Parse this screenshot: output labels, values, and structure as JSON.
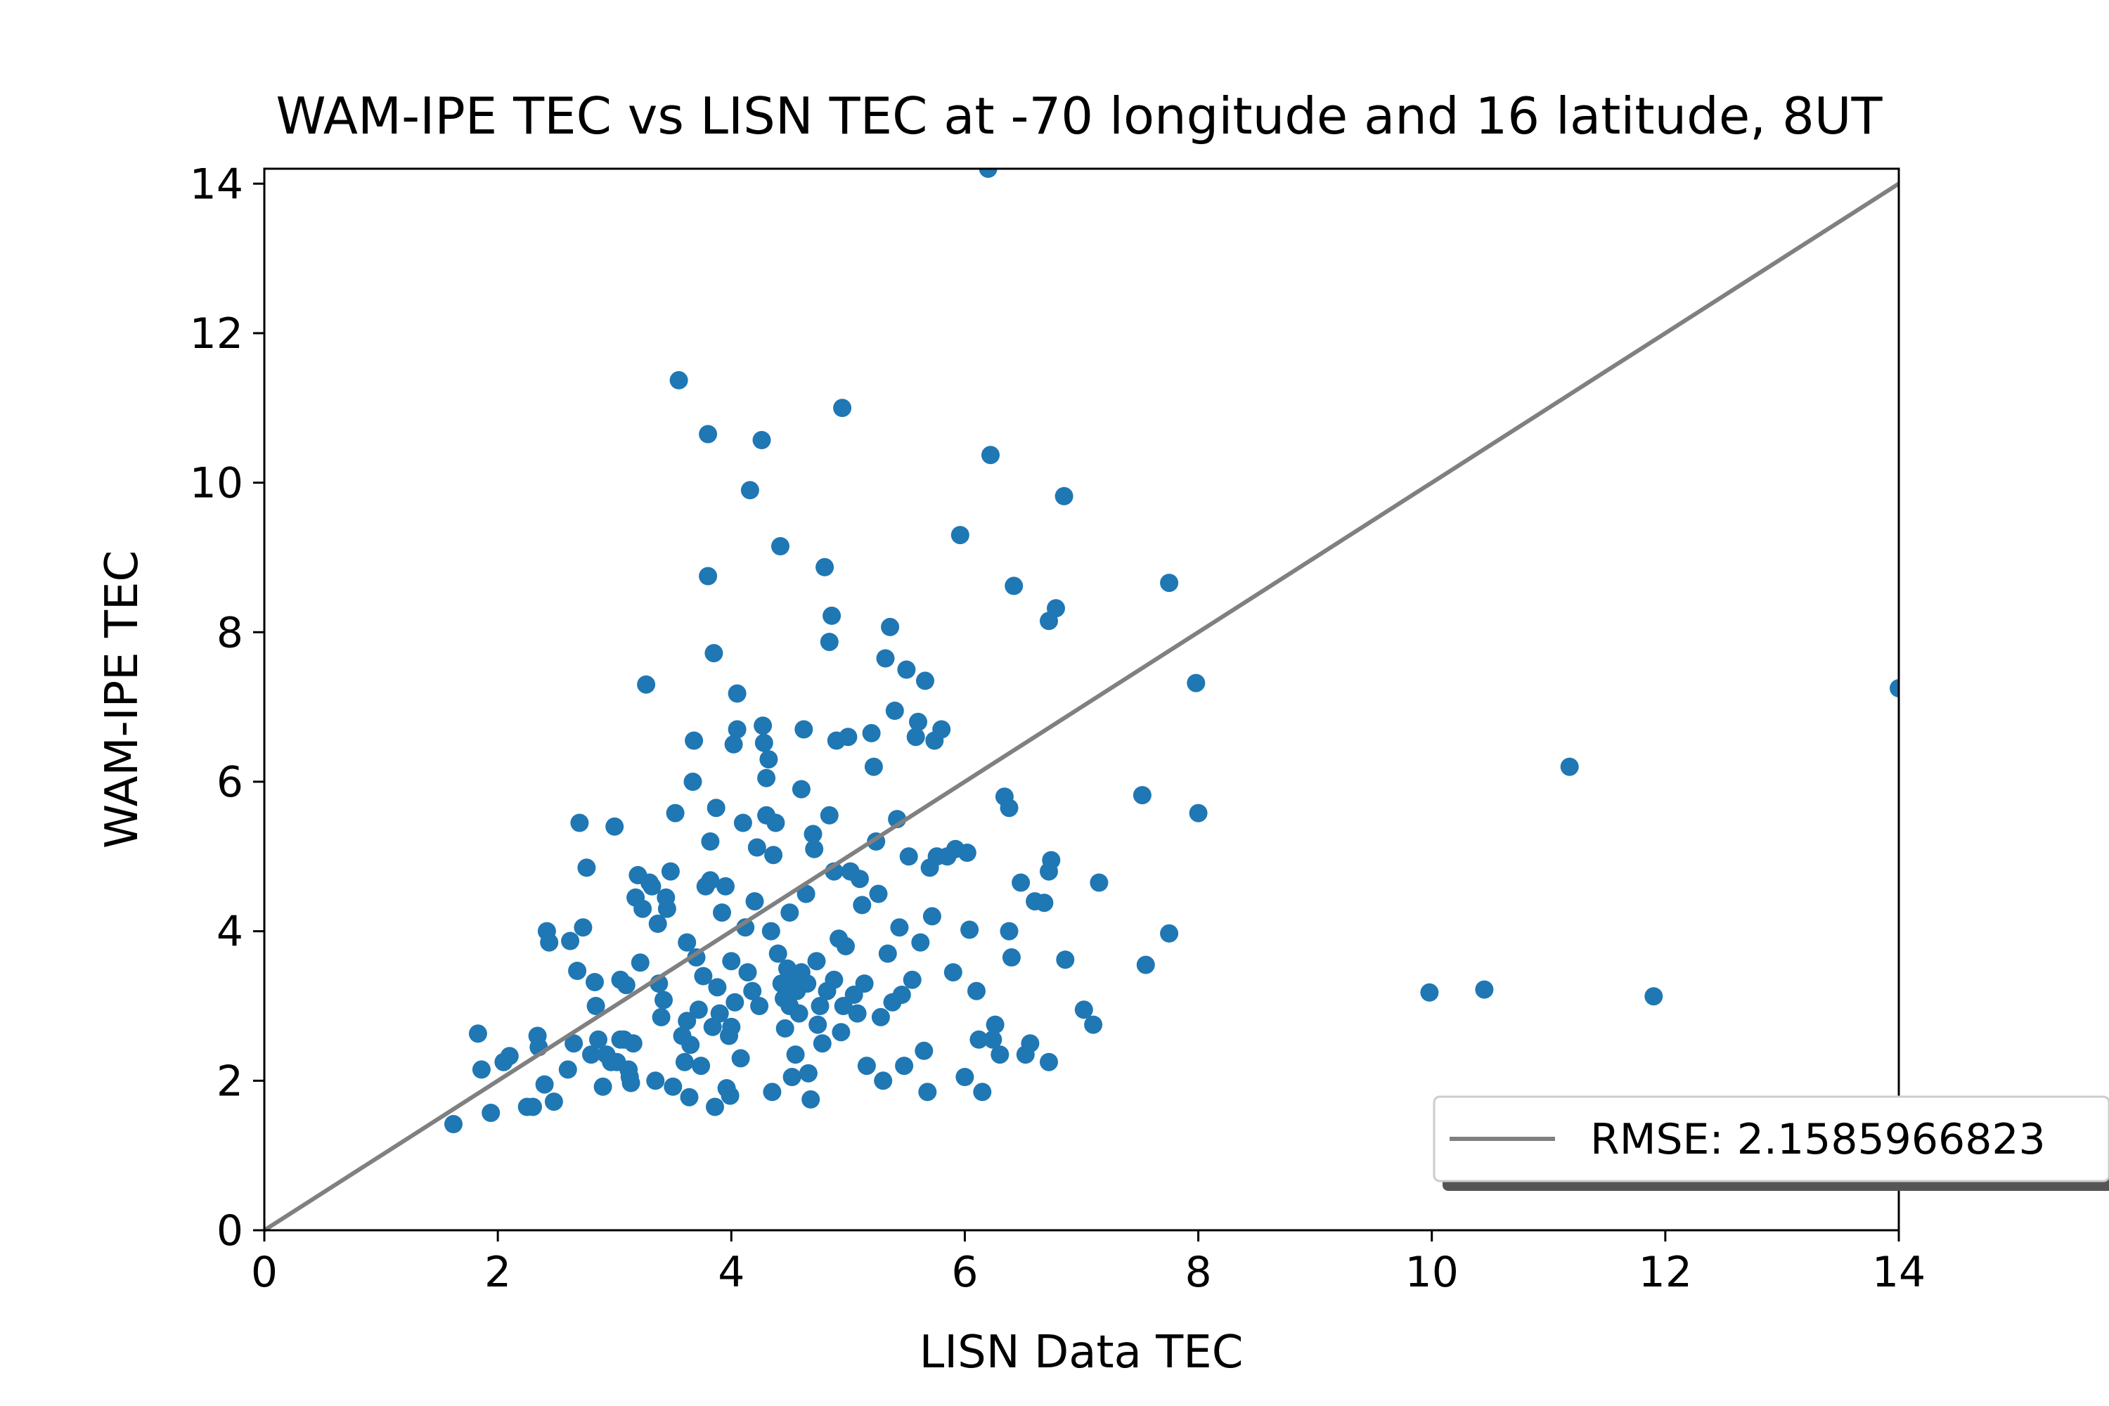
{
  "chart_data": {
    "type": "scatter",
    "title": "WAM-IPE TEC vs LISN TEC at -70 longitude and 16 latitude, 8UT",
    "xlabel": "LISN Data TEC",
    "ylabel": "WAM-IPE TEC",
    "xlim": [
      0,
      14
    ],
    "ylim": [
      0,
      14.2
    ],
    "xticks": [
      "0",
      "2",
      "4",
      "6",
      "8",
      "10",
      "12",
      "14"
    ],
    "yticks": [
      "0",
      "2",
      "4",
      "6",
      "8",
      "10",
      "12",
      "14"
    ],
    "grid": false,
    "legend_position": "lower-right",
    "legend": [
      {
        "label": "RMSE: 2.1585966823",
        "marker": "line",
        "color": "#808080"
      }
    ],
    "colors": {
      "points": "#1f77b4",
      "reference_line": "#808080"
    },
    "reference_line": {
      "x": [
        0,
        14
      ],
      "y": [
        0,
        14
      ]
    },
    "series": [
      {
        "color": "#1f77b4",
        "points": [
          [
            1.62,
            1.42
          ],
          [
            1.83,
            2.63
          ],
          [
            1.86,
            2.15
          ],
          [
            1.94,
            1.57
          ],
          [
            2.05,
            2.25
          ],
          [
            2.1,
            2.33
          ],
          [
            2.25,
            1.65
          ],
          [
            2.3,
            1.65
          ],
          [
            2.34,
            2.6
          ],
          [
            2.35,
            2.45
          ],
          [
            2.4,
            1.95
          ],
          [
            2.42,
            4.0
          ],
          [
            2.44,
            3.85
          ],
          [
            2.48,
            1.72
          ],
          [
            2.6,
            2.15
          ],
          [
            2.62,
            3.87
          ],
          [
            2.65,
            2.5
          ],
          [
            2.68,
            3.47
          ],
          [
            2.7,
            5.45
          ],
          [
            2.73,
            4.05
          ],
          [
            2.76,
            4.85
          ],
          [
            2.8,
            2.35
          ],
          [
            2.83,
            3.32
          ],
          [
            2.84,
            3.0
          ],
          [
            2.86,
            2.55
          ],
          [
            2.9,
            1.92
          ],
          [
            2.93,
            2.35
          ],
          [
            2.97,
            2.25
          ],
          [
            3.0,
            5.4
          ],
          [
            3.02,
            2.25
          ],
          [
            3.05,
            3.35
          ],
          [
            3.05,
            2.55
          ],
          [
            3.08,
            2.55
          ],
          [
            3.1,
            3.28
          ],
          [
            3.12,
            2.15
          ],
          [
            3.13,
            2.05
          ],
          [
            3.14,
            1.97
          ],
          [
            3.16,
            2.5
          ],
          [
            3.18,
            4.45
          ],
          [
            3.2,
            4.75
          ],
          [
            3.22,
            3.58
          ],
          [
            3.24,
            4.3
          ],
          [
            3.27,
            7.3
          ],
          [
            3.3,
            4.65
          ],
          [
            3.32,
            4.6
          ],
          [
            3.35,
            2.0
          ],
          [
            3.37,
            4.1
          ],
          [
            3.38,
            3.3
          ],
          [
            3.4,
            2.85
          ],
          [
            3.42,
            3.08
          ],
          [
            3.44,
            4.45
          ],
          [
            3.45,
            4.3
          ],
          [
            3.48,
            4.8
          ],
          [
            3.5,
            1.92
          ],
          [
            3.52,
            5.58
          ],
          [
            3.55,
            11.37
          ],
          [
            3.58,
            2.6
          ],
          [
            3.6,
            2.25
          ],
          [
            3.62,
            3.85
          ],
          [
            3.62,
            2.8
          ],
          [
            3.64,
            1.78
          ],
          [
            3.65,
            2.48
          ],
          [
            3.67,
            6.0
          ],
          [
            3.68,
            6.55
          ],
          [
            3.7,
            3.65
          ],
          [
            3.72,
            2.95
          ],
          [
            3.74,
            2.2
          ],
          [
            3.76,
            3.4
          ],
          [
            3.78,
            4.6
          ],
          [
            3.8,
            10.65
          ],
          [
            3.8,
            8.75
          ],
          [
            3.82,
            5.2
          ],
          [
            3.82,
            4.68
          ],
          [
            3.84,
            2.72
          ],
          [
            3.85,
            7.72
          ],
          [
            3.86,
            1.65
          ],
          [
            3.87,
            5.65
          ],
          [
            3.88,
            3.25
          ],
          [
            3.9,
            2.9
          ],
          [
            3.92,
            4.25
          ],
          [
            3.95,
            4.6
          ],
          [
            3.96,
            1.9
          ],
          [
            3.98,
            2.6
          ],
          [
            3.99,
            1.8
          ],
          [
            4.0,
            3.6
          ],
          [
            4.0,
            2.72
          ],
          [
            4.02,
            6.5
          ],
          [
            4.03,
            3.05
          ],
          [
            4.05,
            7.18
          ],
          [
            4.05,
            6.7
          ],
          [
            4.08,
            2.3
          ],
          [
            4.1,
            5.45
          ],
          [
            4.12,
            4.05
          ],
          [
            4.14,
            3.45
          ],
          [
            4.16,
            9.9
          ],
          [
            4.18,
            3.2
          ],
          [
            4.2,
            4.4
          ],
          [
            4.22,
            5.12
          ],
          [
            4.24,
            3.0
          ],
          [
            4.26,
            10.57
          ],
          [
            4.27,
            6.75
          ],
          [
            4.28,
            6.52
          ],
          [
            4.3,
            6.05
          ],
          [
            4.3,
            5.55
          ],
          [
            4.32,
            6.3
          ],
          [
            4.34,
            4.0
          ],
          [
            4.35,
            1.85
          ],
          [
            4.36,
            5.02
          ],
          [
            4.38,
            5.45
          ],
          [
            4.4,
            3.7
          ],
          [
            4.42,
            9.15
          ],
          [
            4.43,
            3.3
          ],
          [
            4.45,
            3.1
          ],
          [
            4.46,
            2.7
          ],
          [
            4.48,
            3.5
          ],
          [
            4.5,
            4.25
          ],
          [
            4.5,
            3.0
          ],
          [
            4.52,
            2.05
          ],
          [
            4.54,
            3.4
          ],
          [
            4.55,
            2.35
          ],
          [
            4.56,
            3.2
          ],
          [
            4.58,
            2.9
          ],
          [
            4.6,
            5.9
          ],
          [
            4.6,
            3.45
          ],
          [
            4.62,
            6.7
          ],
          [
            4.64,
            4.5
          ],
          [
            4.65,
            3.3
          ],
          [
            4.66,
            2.1
          ],
          [
            4.68,
            1.75
          ],
          [
            4.7,
            5.3
          ],
          [
            4.71,
            5.1
          ],
          [
            4.73,
            3.6
          ],
          [
            4.74,
            2.75
          ],
          [
            4.76,
            3.0
          ],
          [
            4.78,
            2.5
          ],
          [
            4.8,
            8.87
          ],
          [
            4.82,
            3.2
          ],
          [
            4.84,
            7.87
          ],
          [
            4.84,
            5.55
          ],
          [
            4.86,
            8.22
          ],
          [
            4.88,
            4.8
          ],
          [
            4.88,
            3.35
          ],
          [
            4.9,
            6.55
          ],
          [
            4.92,
            3.9
          ],
          [
            4.94,
            2.65
          ],
          [
            4.95,
            11.0
          ],
          [
            4.96,
            3.0
          ],
          [
            4.98,
            3.8
          ],
          [
            5.0,
            6.6
          ],
          [
            5.02,
            4.8
          ],
          [
            5.05,
            3.15
          ],
          [
            5.08,
            2.9
          ],
          [
            5.1,
            4.7
          ],
          [
            5.12,
            4.35
          ],
          [
            5.14,
            3.3
          ],
          [
            5.16,
            2.2
          ],
          [
            5.2,
            6.65
          ],
          [
            5.22,
            6.2
          ],
          [
            5.24,
            5.2
          ],
          [
            5.26,
            4.5
          ],
          [
            5.28,
            2.85
          ],
          [
            5.3,
            2.0
          ],
          [
            5.32,
            7.65
          ],
          [
            5.34,
            3.7
          ],
          [
            5.36,
            8.07
          ],
          [
            5.38,
            3.05
          ],
          [
            5.4,
            6.95
          ],
          [
            5.42,
            5.5
          ],
          [
            5.44,
            4.05
          ],
          [
            5.46,
            3.15
          ],
          [
            5.48,
            2.2
          ],
          [
            5.5,
            7.5
          ],
          [
            5.52,
            5.0
          ],
          [
            5.55,
            3.35
          ],
          [
            5.58,
            6.6
          ],
          [
            5.6,
            6.8
          ],
          [
            5.62,
            3.85
          ],
          [
            5.65,
            2.4
          ],
          [
            5.66,
            7.35
          ],
          [
            5.68,
            1.85
          ],
          [
            5.7,
            4.85
          ],
          [
            5.72,
            4.2
          ],
          [
            5.74,
            6.55
          ],
          [
            5.76,
            5.0
          ],
          [
            5.8,
            6.7
          ],
          [
            5.85,
            5.0
          ],
          [
            5.9,
            3.45
          ],
          [
            5.92,
            5.1
          ],
          [
            5.96,
            9.3
          ],
          [
            6.0,
            2.05
          ],
          [
            6.02,
            5.05
          ],
          [
            6.04,
            4.02
          ],
          [
            6.1,
            3.2
          ],
          [
            6.12,
            2.55
          ],
          [
            6.15,
            1.85
          ],
          [
            6.2,
            14.2
          ],
          [
            6.22,
            10.37
          ],
          [
            6.24,
            2.55
          ],
          [
            6.26,
            2.75
          ],
          [
            6.3,
            2.35
          ],
          [
            6.34,
            5.8
          ],
          [
            6.38,
            5.65
          ],
          [
            6.38,
            4.0
          ],
          [
            6.4,
            3.65
          ],
          [
            6.42,
            8.62
          ],
          [
            6.48,
            4.65
          ],
          [
            6.52,
            2.35
          ],
          [
            6.56,
            2.5
          ],
          [
            6.6,
            4.4
          ],
          [
            6.68,
            4.38
          ],
          [
            6.72,
            8.15
          ],
          [
            6.72,
            4.8
          ],
          [
            6.72,
            2.25
          ],
          [
            6.74,
            4.95
          ],
          [
            6.78,
            8.32
          ],
          [
            6.85,
            9.82
          ],
          [
            6.86,
            3.62
          ],
          [
            7.02,
            2.95
          ],
          [
            7.1,
            2.75
          ],
          [
            7.15,
            4.65
          ],
          [
            7.52,
            5.82
          ],
          [
            7.55,
            3.55
          ],
          [
            7.75,
            8.66
          ],
          [
            7.75,
            3.97
          ],
          [
            7.98,
            7.32
          ],
          [
            8.0,
            5.58
          ],
          [
            9.98,
            3.18
          ],
          [
            10.45,
            3.22
          ],
          [
            11.18,
            6.2
          ],
          [
            11.9,
            3.13
          ],
          [
            14.0,
            7.25
          ]
        ]
      }
    ]
  }
}
